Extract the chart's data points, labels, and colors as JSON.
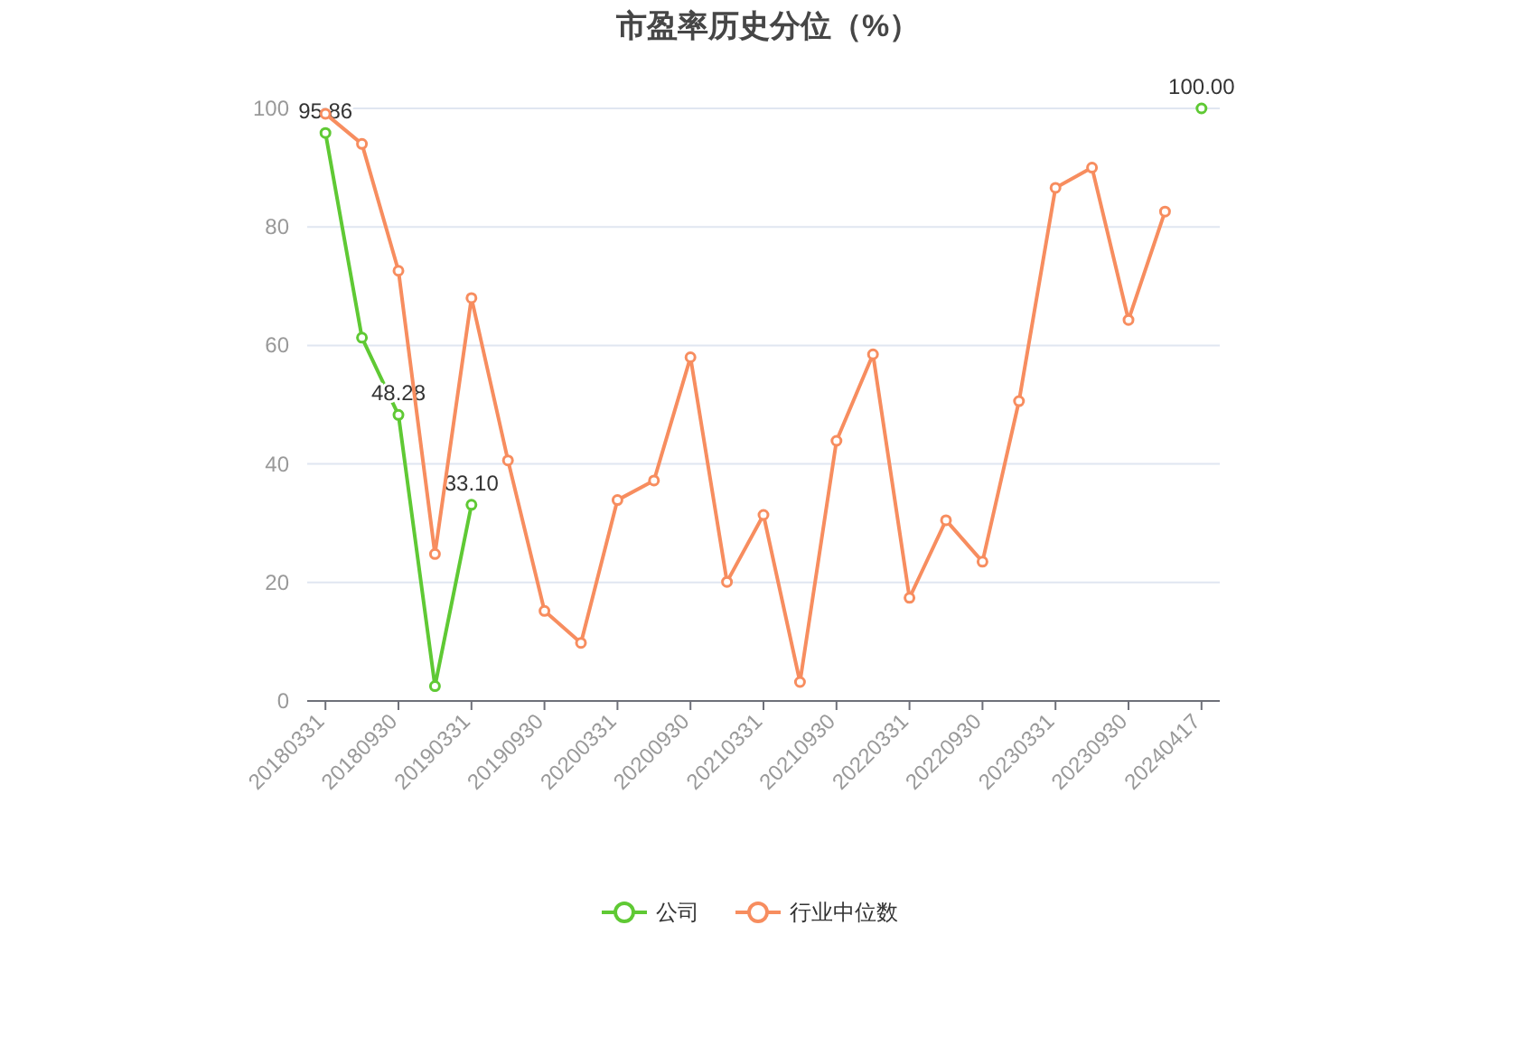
{
  "chart_data": {
    "type": "line",
    "title": "市盈率历史分位（%）",
    "categories": [
      "20180331",
      null,
      "20180930",
      null,
      "20190331",
      null,
      "20190930",
      null,
      "20200331",
      null,
      "20200930",
      null,
      "20210331",
      null,
      "20210930",
      null,
      "20220331",
      null,
      "20220930",
      null,
      "20230331",
      null,
      "20230930",
      null,
      "20240417"
    ],
    "series": [
      {
        "name": "公司",
        "color": "#5fc934",
        "values": [
          95.86,
          61.3,
          48.28,
          2.5,
          33.1,
          null,
          null,
          null,
          null,
          null,
          null,
          null,
          null,
          null,
          null,
          null,
          null,
          null,
          null,
          null,
          null,
          null,
          null,
          null,
          100.0
        ],
        "value_labels": [
          "95.86",
          null,
          "48.28",
          null,
          "33.10",
          null,
          null,
          null,
          null,
          null,
          null,
          null,
          null,
          null,
          null,
          null,
          null,
          null,
          null,
          null,
          null,
          null,
          null,
          null,
          "100.00"
        ]
      },
      {
        "name": "行业中位数",
        "color": "#f78d5f",
        "values": [
          99.1,
          94,
          72.6,
          24.8,
          68,
          40.6,
          15.2,
          9.8,
          33.9,
          37.2,
          58,
          20.1,
          31.4,
          3.2,
          43.9,
          58.5,
          17.4,
          30.5,
          23.5,
          50.6,
          86.6,
          90,
          64.3,
          82.6,
          null
        ]
      }
    ],
    "ylim": [
      0,
      100
    ],
    "yticks": [
      0,
      20,
      40,
      60,
      80,
      100
    ],
    "grid": "y",
    "legend": "bottom",
    "marker": "circle",
    "line_style": "solid"
  }
}
